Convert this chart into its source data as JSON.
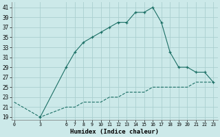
{
  "xlabel": "Humidex (Indice chaleur)",
  "bg_color": "#cce9e9",
  "grid_color": "#aacfcf",
  "line_color": "#1a6e64",
  "x_main": [
    3,
    6,
    7,
    8,
    9,
    10,
    11,
    12,
    13,
    14,
    15,
    16,
    17,
    18,
    19,
    20,
    21,
    22,
    23
  ],
  "y_main": [
    19,
    29,
    32,
    34,
    35,
    36,
    37,
    38,
    38,
    40,
    40,
    41,
    38,
    32,
    29,
    29,
    28,
    28,
    26
  ],
  "x_dashed": [
    0,
    3,
    6,
    7,
    8,
    9,
    10,
    11,
    12,
    13,
    14,
    15,
    16,
    17,
    18,
    19,
    20,
    21,
    22,
    23
  ],
  "y_dashed": [
    22,
    19,
    21,
    21,
    22,
    22,
    22,
    23,
    23,
    24,
    24,
    24,
    25,
    25,
    25,
    25,
    25,
    26,
    26,
    26
  ],
  "xlim": [
    -0.3,
    23.5
  ],
  "ylim": [
    18.5,
    42
  ],
  "yticks": [
    19,
    21,
    23,
    25,
    27,
    29,
    31,
    33,
    35,
    37,
    39,
    41
  ],
  "xticks": [
    0,
    3,
    6,
    7,
    8,
    9,
    10,
    11,
    12,
    13,
    14,
    15,
    16,
    17,
    18,
    19,
    20,
    21,
    22,
    23
  ]
}
